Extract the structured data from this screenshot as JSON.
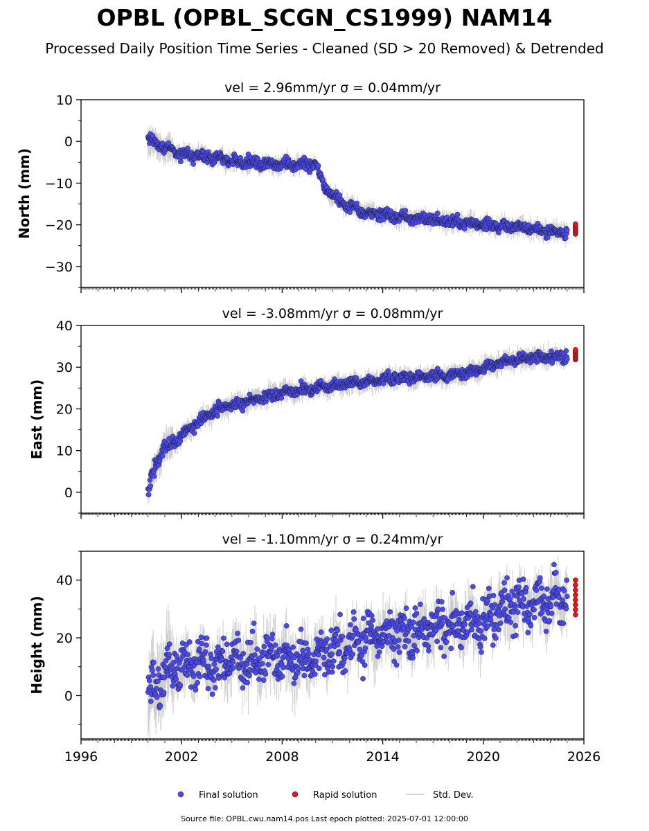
{
  "title": "OPBL (OPBL_SCGN_CS1999) NAM14",
  "subtitle": "Processed Daily Position Time Series - Cleaned (SD > 20 Removed) & Detrended",
  "footer": "Source file: OPBL.cwu.nam14.pos  Last epoch plotted: 2025-07-01 12:00:00",
  "colors": {
    "final": "#4a4af0",
    "rapid": "#e8141e",
    "stddev": "#c8c8c8",
    "marker_edge": "#1a1a1a"
  },
  "legend": {
    "final_label": "Final solution",
    "rapid_label": "Rapid solution",
    "std_label": "Std. Dev."
  },
  "x_axis": {
    "min": 1996,
    "max": 2026,
    "ticks": [
      1996,
      2002,
      2008,
      2014,
      2020,
      2026
    ]
  },
  "chart_data": [
    {
      "type": "scatter",
      "panel": "north",
      "title": "vel = 2.96mm/yr   σ = 0.04mm/yr",
      "ylabel": "North (mm)",
      "ylim": [
        -35,
        10
      ],
      "yticks": [
        10,
        0,
        -10,
        -20,
        -30
      ],
      "x": [
        2000.0,
        2001.0,
        2002.0,
        2003.0,
        2004.0,
        2005.0,
        2006.0,
        2007.0,
        2008.0,
        2009.0,
        2010.0,
        2010.5,
        2011.0,
        2012.0,
        2013.0,
        2014.0,
        2015.0,
        2016.0,
        2017.0,
        2018.0,
        2019.0,
        2020.0,
        2021.0,
        2022.0,
        2023.0,
        2024.0,
        2025.0
      ],
      "y": [
        0,
        -1.5,
        -3,
        -3.5,
        -4,
        -4.5,
        -5,
        -5.5,
        -5.5,
        -5.5,
        -5.5,
        -11,
        -13,
        -15.5,
        -17,
        -17.5,
        -18,
        -18.5,
        -18.5,
        -19,
        -19.5,
        -20,
        -20.5,
        -20.5,
        -21,
        -21.5,
        -22
      ],
      "rapid_x": [
        2025.5
      ],
      "rapid_y": [
        -21
      ]
    },
    {
      "type": "scatter",
      "panel": "east",
      "title": "vel = -3.08mm/yr   σ = 0.08mm/yr",
      "ylabel": "East (mm)",
      "ylim": [
        -5,
        40
      ],
      "yticks": [
        40,
        30,
        20,
        10,
        0
      ],
      "x": [
        2000.0,
        2000.25,
        2000.5,
        2001.0,
        2002.0,
        2003.0,
        2004.0,
        2005.0,
        2006.0,
        2007.0,
        2008.0,
        2009.0,
        2010.0,
        2011.0,
        2012.0,
        2013.0,
        2014.0,
        2015.0,
        2016.0,
        2017.0,
        2018.0,
        2019.0,
        2020.0,
        2021.0,
        2022.0,
        2023.0,
        2024.0,
        2025.0
      ],
      "y": [
        0,
        4,
        7,
        10.5,
        13.5,
        17,
        19.5,
        21,
        22,
        23,
        24,
        24.5,
        25,
        25.5,
        26,
        26.5,
        27,
        27.5,
        27.5,
        28,
        28,
        28.5,
        30,
        31,
        32,
        32.5,
        32.5,
        32.5
      ],
      "rapid_x": [
        2025.5
      ],
      "rapid_y": [
        33
      ]
    },
    {
      "type": "scatter",
      "panel": "height",
      "title": "vel = -1.10mm/yr   σ = 0.24mm/yr",
      "ylabel": "Height (mm)",
      "ylim": [
        -15,
        50
      ],
      "yticks": [
        40,
        20,
        0
      ],
      "x": [
        2000.0,
        2001.0,
        2002.0,
        2003.0,
        2004.0,
        2005.0,
        2006.0,
        2007.0,
        2008.0,
        2009.0,
        2010.0,
        2011.0,
        2012.0,
        2013.0,
        2014.0,
        2015.0,
        2016.0,
        2017.0,
        2018.0,
        2019.0,
        2020.0,
        2021.0,
        2022.0,
        2023.0,
        2024.0,
        2025.0
      ],
      "y": [
        0,
        8,
        10,
        12,
        10,
        11,
        12,
        12,
        13,
        12,
        13,
        17,
        18,
        20,
        21,
        22,
        22,
        23,
        24,
        25,
        25,
        30,
        31,
        32,
        33,
        33
      ],
      "rapid_x": [
        2025.5
      ],
      "rapid_y": [
        34
      ]
    }
  ]
}
